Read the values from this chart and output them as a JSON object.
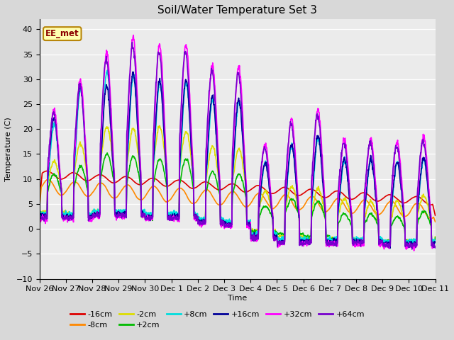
{
  "title": "Soil/Water Temperature Set 3",
  "xlabel": "Time",
  "ylabel": "Temperature (C)",
  "ylim": [
    -10,
    42
  ],
  "yticks": [
    -10,
    -5,
    0,
    5,
    10,
    15,
    20,
    25,
    30,
    35,
    40
  ],
  "fig_bg": "#d8d8d8",
  "plot_bg": "#ebebeb",
  "annotation_text": "EE_met",
  "annotation_color": "#8b0000",
  "annotation_bg": "#ffffb0",
  "annotation_edge": "#b8860b",
  "series": {
    "-16cm": {
      "color": "#dd0000",
      "lw": 1.2
    },
    "-8cm": {
      "color": "#ff8800",
      "lw": 1.2
    },
    "-2cm": {
      "color": "#dddd00",
      "lw": 1.2
    },
    "+2cm": {
      "color": "#00bb00",
      "lw": 1.2
    },
    "+8cm": {
      "color": "#00dddd",
      "lw": 1.2
    },
    "+16cm": {
      "color": "#000099",
      "lw": 1.2
    },
    "+32cm": {
      "color": "#ff00ff",
      "lw": 1.2
    },
    "+64cm": {
      "color": "#7700cc",
      "lw": 1.2
    }
  },
  "x_labels": [
    "Nov 26",
    "Nov 27",
    "Nov 28",
    "Nov 29",
    "Nov 30",
    "Dec 1",
    "Dec 2",
    "Dec 3",
    "Dec 4",
    "Dec 5",
    "Dec 6",
    "Dec 7",
    "Dec 8",
    "Dec 9",
    "Dec 10",
    "Dec 11"
  ],
  "n_days": 15
}
